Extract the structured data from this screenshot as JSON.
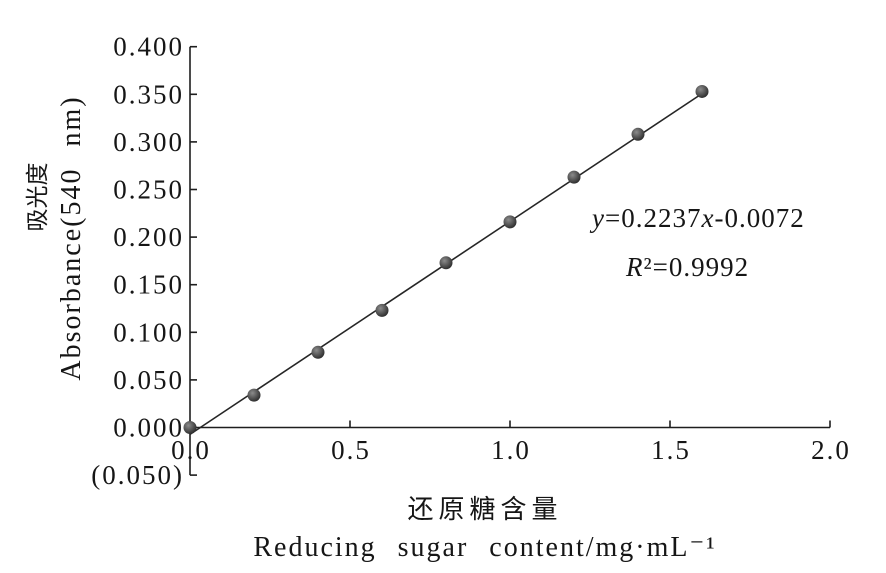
{
  "chart_data": {
    "type": "scatter",
    "xlabel": {
      "zh": "还原糖含量",
      "en": "Reducing sugar content/mg·mL⁻¹"
    },
    "ylabel": {
      "zh": "吸光度",
      "en": "Absorbance(540 nm)"
    },
    "xlim": [
      0,
      2.0
    ],
    "ylim": [
      -0.05,
      0.4
    ],
    "x_ticks": [
      {
        "value": 0.0,
        "label": "0.0"
      },
      {
        "value": 0.5,
        "label": "0.5"
      },
      {
        "value": 1.0,
        "label": "1.0"
      },
      {
        "value": 1.5,
        "label": "1.5"
      },
      {
        "value": 2.0,
        "label": "2.0"
      }
    ],
    "y_ticks": [
      {
        "value": 0.4,
        "label": "0.400"
      },
      {
        "value": 0.35,
        "label": "0.350"
      },
      {
        "value": 0.3,
        "label": "0.300"
      },
      {
        "value": 0.25,
        "label": "0.250"
      },
      {
        "value": 0.2,
        "label": "0.200"
      },
      {
        "value": 0.15,
        "label": "0.150"
      },
      {
        "value": 0.1,
        "label": "0.100"
      },
      {
        "value": 0.05,
        "label": "0.050"
      },
      {
        "value": 0.0,
        "label": "0.000"
      },
      {
        "value": -0.05,
        "label": "(0.050)"
      }
    ],
    "series": [
      {
        "x": [
          0.0,
          0.2,
          0.4,
          0.6,
          0.8,
          1.0,
          1.2,
          1.4,
          1.6
        ],
        "y": [
          0.0,
          0.034,
          0.079,
          0.123,
          0.173,
          0.216,
          0.263,
          0.308,
          0.353
        ]
      }
    ],
    "fit": {
      "slope": 0.2237,
      "intercept": -0.0072,
      "x_range": [
        0,
        1.6
      ]
    },
    "annotations": {
      "equation": "y=0.2237x-0.0072",
      "r_squared": "R²=0.9992"
    },
    "grid": false,
    "legend": "none",
    "colors": {
      "marker": "#2a2a2a",
      "line": "#262626",
      "axis": "#1e1e1e",
      "text": "#161616"
    }
  }
}
